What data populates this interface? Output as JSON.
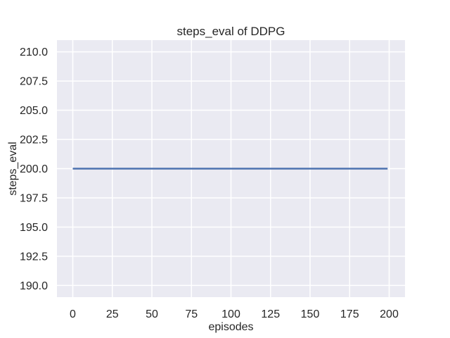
{
  "chart_data": {
    "type": "line",
    "title": "steps_eval of DDPG",
    "xlabel": "episodes",
    "ylabel": "steps_eval",
    "series": [
      {
        "name": "steps_eval of DDPG",
        "x": [
          0,
          199
        ],
        "y": [
          200,
          200
        ],
        "color": "#4c72b0",
        "note": "constant value 200 for every episode from 0 to 199"
      }
    ],
    "xlim": [
      -10,
      210
    ],
    "ylim": [
      189,
      211
    ],
    "xticks": [
      0,
      25,
      50,
      75,
      100,
      125,
      150,
      175,
      200
    ],
    "xtick_labels": [
      "0",
      "25",
      "50",
      "75",
      "100",
      "125",
      "150",
      "175",
      "200"
    ],
    "yticks": [
      190,
      192.5,
      195,
      197.5,
      200,
      202.5,
      205,
      207.5,
      210
    ],
    "ytick_labels": [
      "190.0",
      "192.5",
      "195.0",
      "197.5",
      "200.0",
      "202.5",
      "205.0",
      "207.5",
      "210.0"
    ],
    "grid": true,
    "legend": "none",
    "style": {
      "figure_bg": "#ffffff",
      "axes_bg": "#eaeaf2",
      "grid_color": "#ffffff",
      "text_color": "#262626",
      "line_color": "#4c72b0",
      "line_width": 2.4,
      "grid_width": 1.5
    }
  }
}
